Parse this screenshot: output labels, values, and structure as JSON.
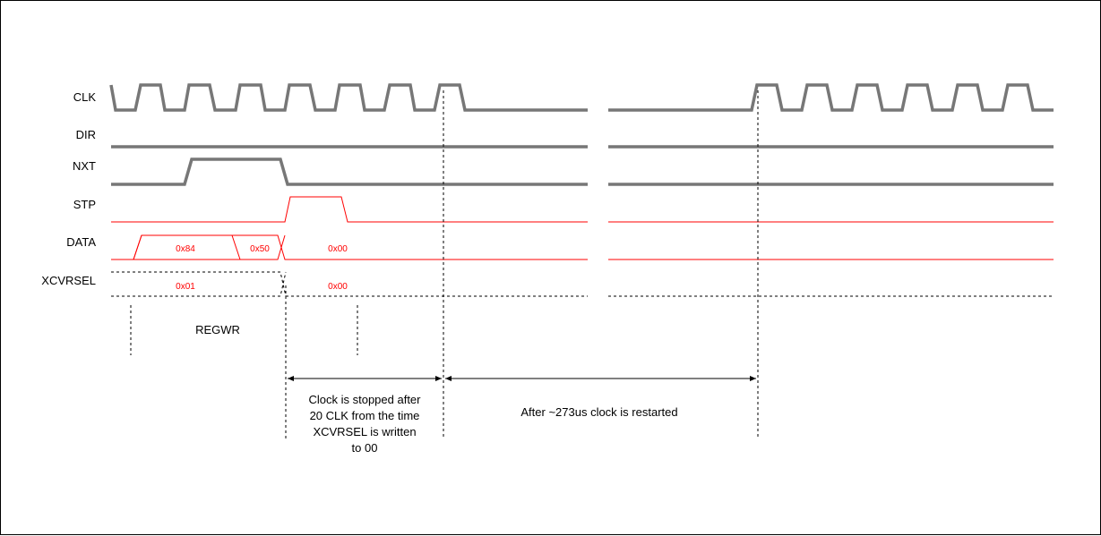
{
  "signals": {
    "clk": "CLK",
    "dir": "DIR",
    "nxt": "NXT",
    "stp": "STP",
    "data": "DATA",
    "xcvrsel": "XCVRSEL"
  },
  "data_values": {
    "d1": "0x84",
    "d2": "0x50",
    "d3": "0x00"
  },
  "xcvrsel_values": {
    "v1": "0x01",
    "v2": "0x00"
  },
  "regwr_label": "REGWR",
  "annotations": {
    "stopped_line1": "Clock is stopped after",
    "stopped_line2": "20 CLK from the time",
    "stopped_line3": "XCVRSEL is written",
    "stopped_line4": "to 00",
    "restarted": "After ~273us clock is restarted"
  },
  "colors": {
    "digital": "#777777",
    "red": "#ff0000",
    "dashed": "#000000"
  }
}
